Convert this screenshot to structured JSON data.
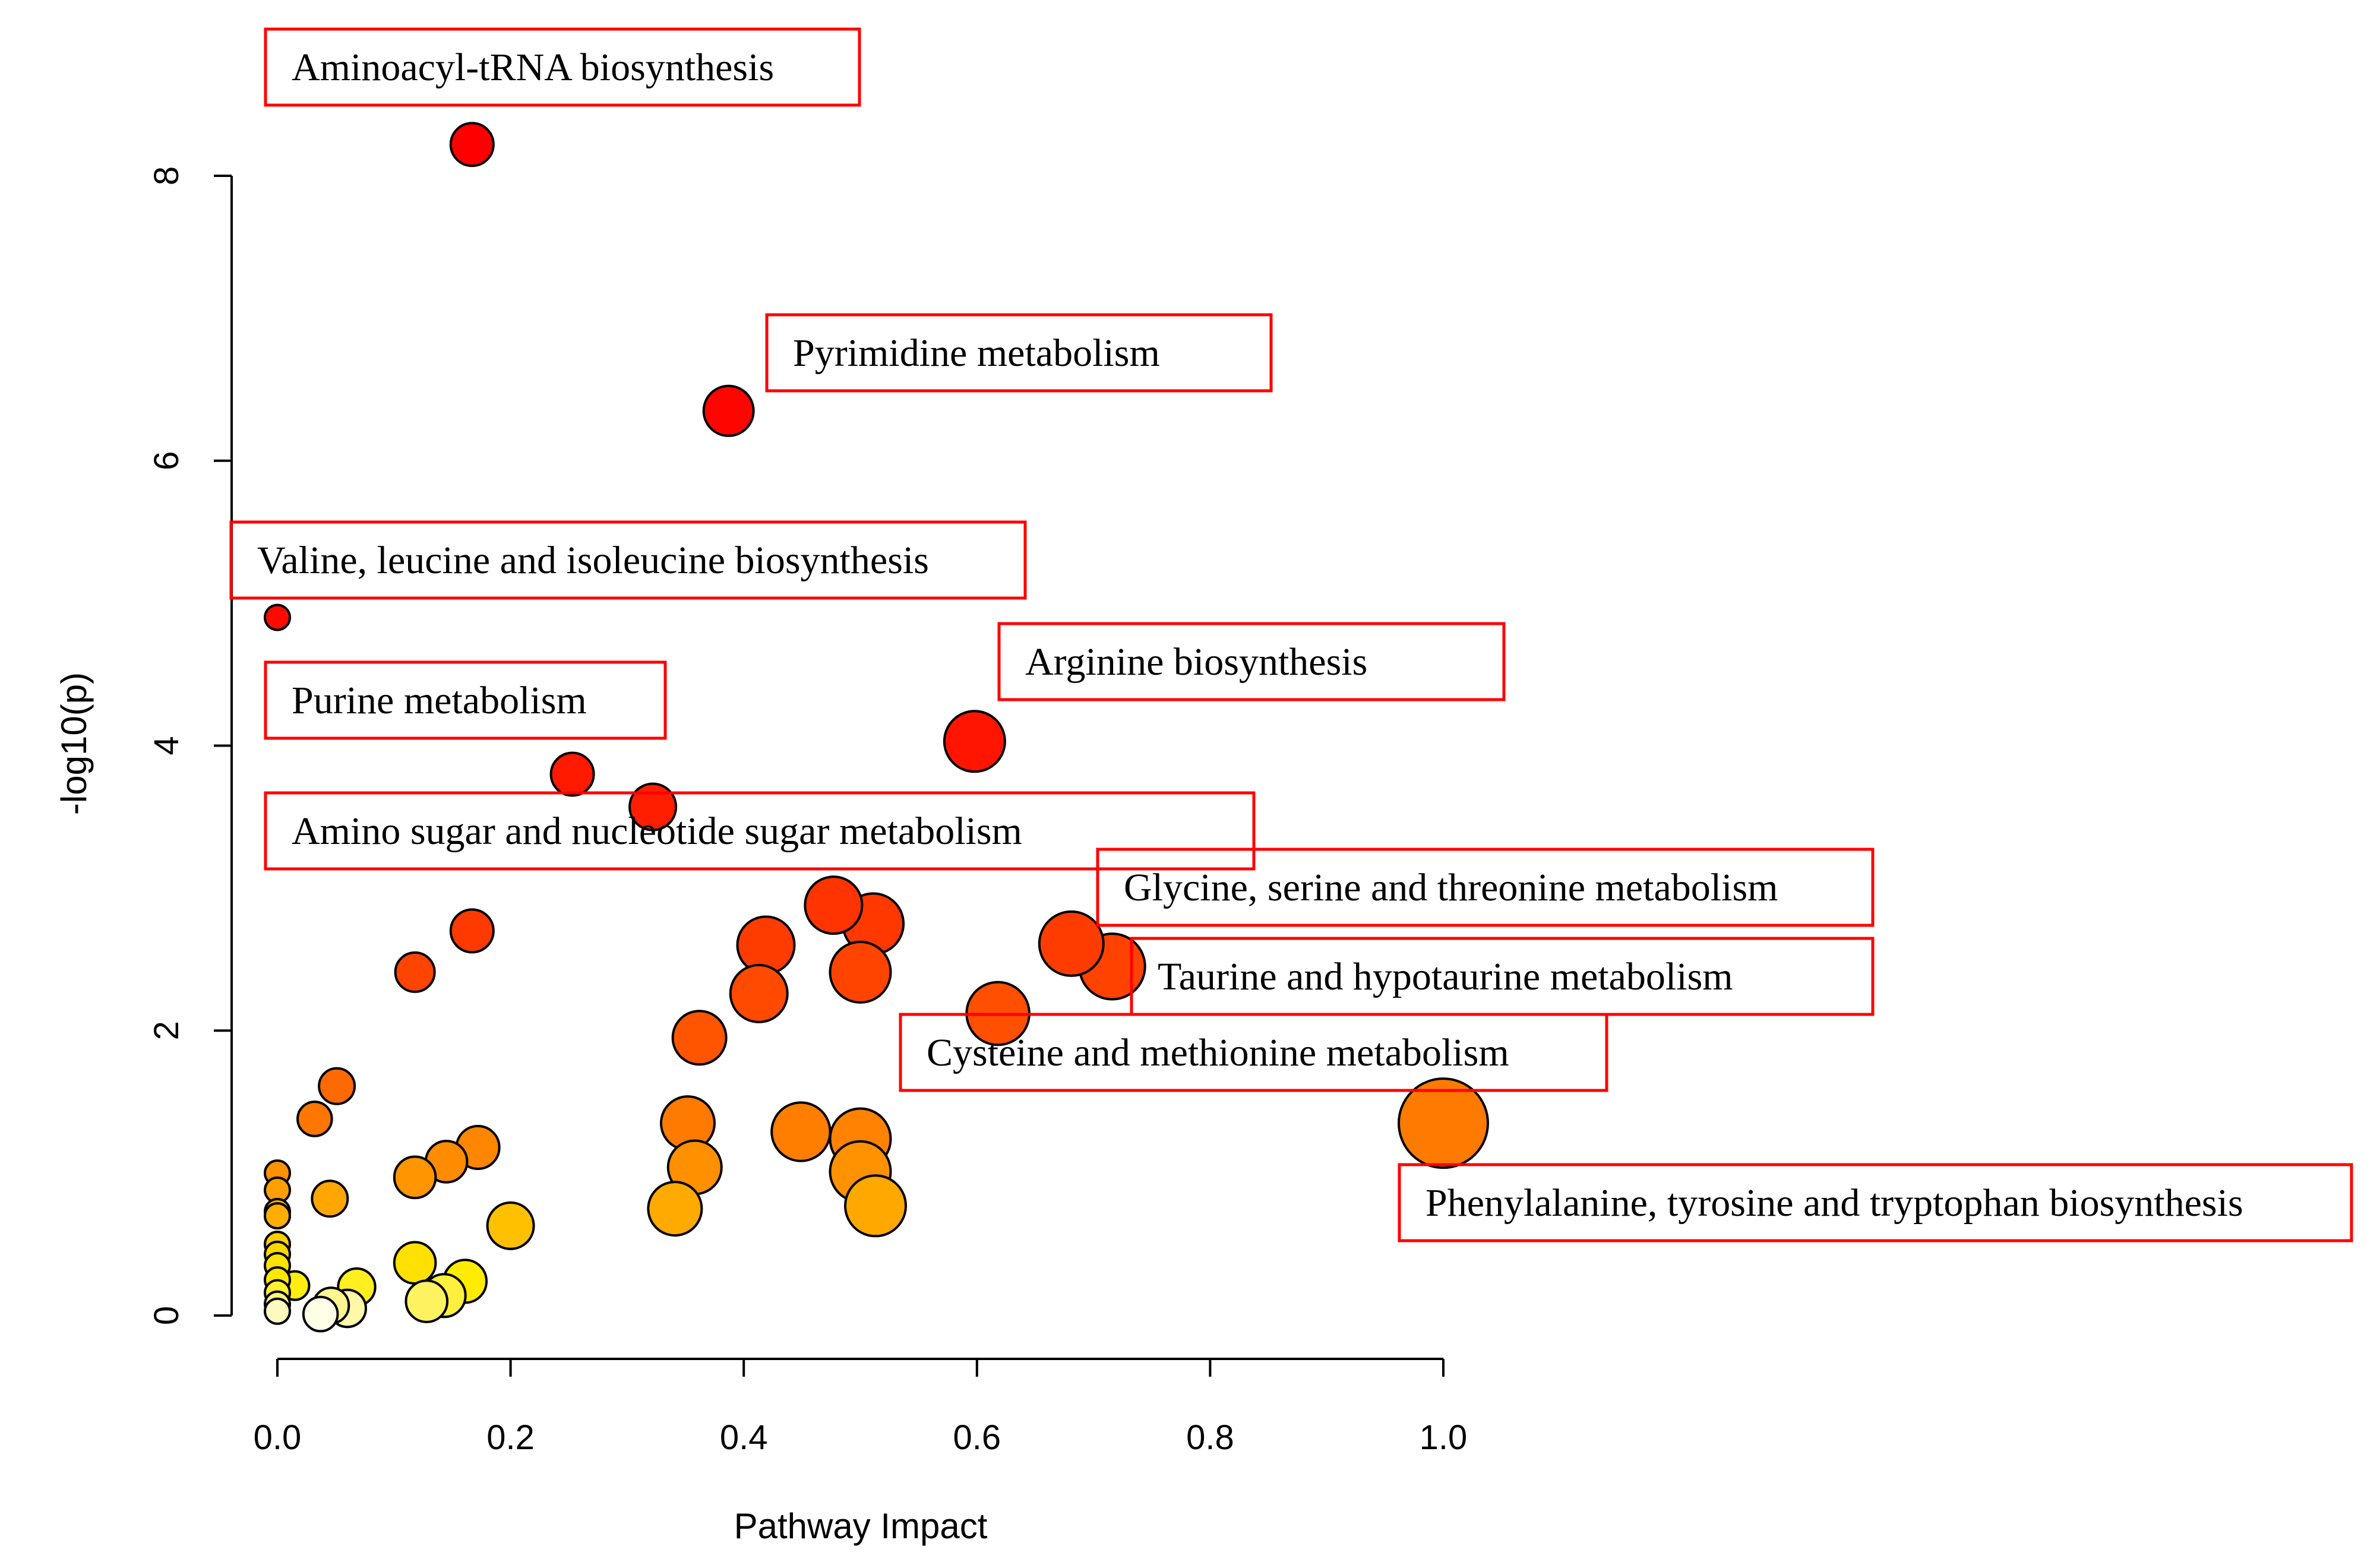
{
  "chart_data": {
    "type": "scatter",
    "title": "",
    "xlabel": "Pathway Impact",
    "ylabel": "-log10(p)",
    "xlim": [
      0,
      1
    ],
    "ylim": [
      0,
      8
    ],
    "x_ticks": [
      "0.0",
      "0.2",
      "0.4",
      "0.6",
      "0.8",
      "1.0"
    ],
    "y_ticks": [
      "0",
      "2",
      "4",
      "6",
      "8"
    ],
    "grid": false,
    "points": [
      {
        "x": 0.167,
        "y": 8.22,
        "size": 0.3,
        "color": "#ff0000"
      },
      {
        "x": 0.387,
        "y": 6.35,
        "size": 0.4,
        "color": "#ff0500"
      },
      {
        "x": 0.0,
        "y": 4.9,
        "size": 0.05,
        "color": "#ff0a00"
      },
      {
        "x": 0.598,
        "y": 4.03,
        "size": 0.55,
        "color": "#ff1500"
      },
      {
        "x": 0.253,
        "y": 3.8,
        "size": 0.3,
        "color": "#ff1a00"
      },
      {
        "x": 0.322,
        "y": 3.57,
        "size": 0.35,
        "color": "#ff1f00"
      },
      {
        "x": 0.477,
        "y": 2.88,
        "size": 0.5,
        "color": "#ff3400"
      },
      {
        "x": 0.511,
        "y": 2.75,
        "size": 0.55,
        "color": "#ff3800"
      },
      {
        "x": 0.167,
        "y": 2.7,
        "size": 0.3,
        "color": "#ff3a00"
      },
      {
        "x": 0.419,
        "y": 2.6,
        "size": 0.5,
        "color": "#ff3c00"
      },
      {
        "x": 0.681,
        "y": 2.61,
        "size": 0.6,
        "color": "#ff3c00"
      },
      {
        "x": 0.716,
        "y": 2.45,
        "size": 0.62,
        "color": "#ff4200"
      },
      {
        "x": 0.118,
        "y": 2.41,
        "size": 0.25,
        "color": "#ff4400"
      },
      {
        "x": 0.5,
        "y": 2.41,
        "size": 0.55,
        "color": "#ff4400"
      },
      {
        "x": 0.413,
        "y": 2.26,
        "size": 0.5,
        "color": "#ff4a00"
      },
      {
        "x": 0.618,
        "y": 2.12,
        "size": 0.58,
        "color": "#ff4f00"
      },
      {
        "x": 0.362,
        "y": 1.95,
        "size": 0.45,
        "color": "#ff5500"
      },
      {
        "x": 0.051,
        "y": 1.61,
        "size": 0.2,
        "color": "#ff6a00"
      },
      {
        "x": 0.032,
        "y": 1.38,
        "size": 0.18,
        "color": "#ff7700"
      },
      {
        "x": 1.0,
        "y": 1.35,
        "size": 0.95,
        "color": "#ff7a00"
      },
      {
        "x": 0.352,
        "y": 1.35,
        "size": 0.45,
        "color": "#ff7a00"
      },
      {
        "x": 0.449,
        "y": 1.29,
        "size": 0.52,
        "color": "#ff7e00"
      },
      {
        "x": 0.5,
        "y": 1.24,
        "size": 0.55,
        "color": "#ff8200"
      },
      {
        "x": 0.172,
        "y": 1.18,
        "size": 0.3,
        "color": "#ff8600"
      },
      {
        "x": 0.145,
        "y": 1.08,
        "size": 0.28,
        "color": "#ff8c00"
      },
      {
        "x": 0.0,
        "y": 1.0,
        "size": 0.05,
        "color": "#ff9200"
      },
      {
        "x": 0.358,
        "y": 1.04,
        "size": 0.45,
        "color": "#ff9000"
      },
      {
        "x": 0.5,
        "y": 1.01,
        "size": 0.55,
        "color": "#ff9200"
      },
      {
        "x": 0.118,
        "y": 0.97,
        "size": 0.28,
        "color": "#ff9500"
      },
      {
        "x": 0.0,
        "y": 0.88,
        "size": 0.05,
        "color": "#ffa000"
      },
      {
        "x": 0.045,
        "y": 0.82,
        "size": 0.2,
        "color": "#ffa600"
      },
      {
        "x": 0.513,
        "y": 0.77,
        "size": 0.55,
        "color": "#ffa800"
      },
      {
        "x": 0.341,
        "y": 0.75,
        "size": 0.45,
        "color": "#ffaa00"
      },
      {
        "x": 0.0,
        "y": 0.73,
        "size": 0.05,
        "color": "#ffac00"
      },
      {
        "x": 0.0,
        "y": 0.7,
        "size": 0.05,
        "color": "#ffae00"
      },
      {
        "x": 0.2,
        "y": 0.63,
        "size": 0.35,
        "color": "#ffc000"
      },
      {
        "x": 0.0,
        "y": 0.5,
        "size": 0.05,
        "color": "#ffd000"
      },
      {
        "x": 0.0,
        "y": 0.43,
        "size": 0.05,
        "color": "#ffd800"
      },
      {
        "x": 0.118,
        "y": 0.37,
        "size": 0.28,
        "color": "#ffe000"
      },
      {
        "x": 0.0,
        "y": 0.35,
        "size": 0.05,
        "color": "#ffe200"
      },
      {
        "x": 0.0,
        "y": 0.25,
        "size": 0.05,
        "color": "#ffe800"
      },
      {
        "x": 0.161,
        "y": 0.24,
        "size": 0.3,
        "color": "#ffec00"
      },
      {
        "x": 0.015,
        "y": 0.21,
        "size": 0.1,
        "color": "#ffee10"
      },
      {
        "x": 0.068,
        "y": 0.2,
        "size": 0.22,
        "color": "#ffee20"
      },
      {
        "x": 0.0,
        "y": 0.16,
        "size": 0.05,
        "color": "#fff030"
      },
      {
        "x": 0.143,
        "y": 0.14,
        "size": 0.3,
        "color": "#fff040"
      },
      {
        "x": 0.128,
        "y": 0.1,
        "size": 0.28,
        "color": "#fff260"
      },
      {
        "x": 0.0,
        "y": 0.08,
        "size": 0.05,
        "color": "#fff480"
      },
      {
        "x": 0.046,
        "y": 0.07,
        "size": 0.2,
        "color": "#fff690"
      },
      {
        "x": 0.06,
        "y": 0.05,
        "size": 0.22,
        "color": "#fff8a8"
      },
      {
        "x": 0.0,
        "y": 0.03,
        "size": 0.05,
        "color": "#fffac0"
      },
      {
        "x": 0.037,
        "y": 0.01,
        "size": 0.18,
        "color": "#ffffe8"
      }
    ],
    "annotations": [
      {
        "text": "Aminoacyl-tRNA biosynthesis"
      },
      {
        "text": "Pyrimidine metabolism"
      },
      {
        "text": "Valine, leucine and isoleucine biosynthesis"
      },
      {
        "text": "Arginine biosynthesis"
      },
      {
        "text": "Purine metabolism"
      },
      {
        "text": "Amino sugar and nucleotide sugar metabolism"
      },
      {
        "text": "Glycine, serine and threonine metabolism"
      },
      {
        "text": "Taurine and hypotaurine metabolism"
      },
      {
        "text": "Cysteine and methionine metabolism"
      },
      {
        "text": "Phenylalanine, tyrosine and tryptophan biosynthesis"
      }
    ],
    "colors": {
      "axis": "#000000",
      "annotation_border": "#ff0000",
      "point_outline": "#000000"
    }
  }
}
